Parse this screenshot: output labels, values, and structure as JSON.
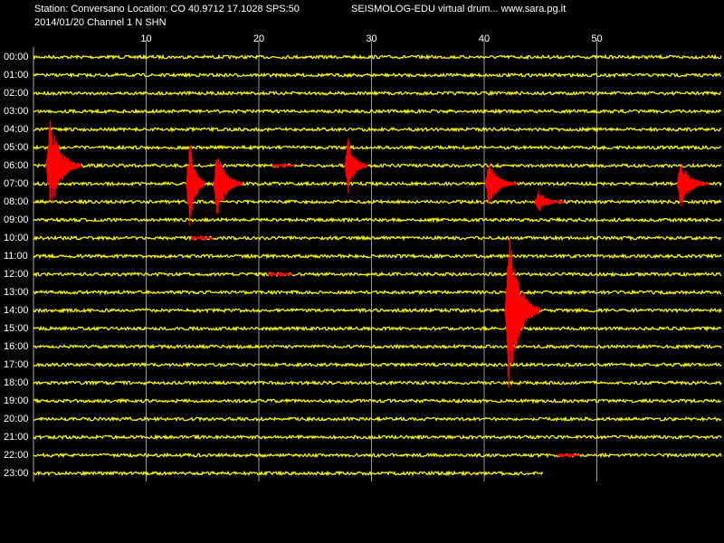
{
  "header": {
    "station": "Station: Conversano Location: CO 40.9712 17.1028 SPS:50",
    "title": "SEISMOLOG-EDU virtual drum... www.sara.pg.it",
    "channel": "2014/01/20  Channel 1 N SHN"
  },
  "x_axis": {
    "range": [
      0,
      60
    ],
    "ticks": [
      10,
      20,
      30,
      40,
      50
    ]
  },
  "rows": [
    "00:00",
    "01:00",
    "02:00",
    "03:00",
    "04:00",
    "05:00",
    "06:00",
    "07:00",
    "08:00",
    "09:00",
    "10:00",
    "11:00",
    "12:00",
    "13:00",
    "14:00",
    "15:00",
    "16:00",
    "17:00",
    "18:00",
    "19:00",
    "20:00",
    "21:00",
    "22:00",
    "23:00"
  ]
}
